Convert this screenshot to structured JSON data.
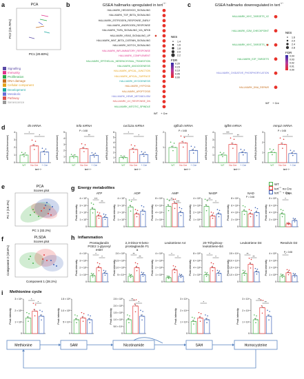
{
  "panels": {
    "a": "a",
    "b": "b",
    "c": "c",
    "d": "d",
    "e": "e",
    "f": "f",
    "g": "g",
    "h": "h",
    "i": "i"
  },
  "pca_a": {
    "title": "PCA",
    "xlabel": "PC1 (20.83%)",
    "ylabel": "PC2 (15.76%)"
  },
  "categories": [
    {
      "label": "Signalling",
      "color": "#5b4aa6"
    },
    {
      "label": "Immunity",
      "color": "#e0338c"
    },
    {
      "label": "Proliferation",
      "color": "#2aa84a"
    },
    {
      "label": "DNA damage",
      "color": "#c76f1e"
    },
    {
      "label": "Cellular component",
      "color": "#e6a21b"
    },
    {
      "label": "Development",
      "color": "#1aa6a0"
    },
    {
      "label": "Metabolic",
      "color": "#6a6fd6"
    },
    {
      "label": "Pathway",
      "color": "#d9534f"
    },
    {
      "label": "Senescence",
      "color": "#9a9a9a"
    }
  ],
  "gsea_up": {
    "title": "GSEA hallmarks upregulated in tert",
    "title_sup": "−/−",
    "x_labels": [
      "WT",
      "+ Cre"
    ],
    "items": [
      {
        "label": "HALLMARK_HEDGEHOG_SIGNALING",
        "color": "#222222",
        "wt": 0,
        "cre": 1
      },
      {
        "label": "HALLMARK_TGF_BETA_SIGNALING",
        "color": "#222222",
        "wt": 0,
        "cre": 1
      },
      {
        "label": "HALLMARK_ESTROGEN_RESPONSE_EARLY",
        "color": "#222222",
        "wt": 0,
        "cre": 1
      },
      {
        "label": "HALLMARK_ANDROGEN_RESPONSE",
        "color": "#222222",
        "wt": 0,
        "cre": 1
      },
      {
        "label": "HALLMARK_TNFA_SIGNALING_VIA_NFKB",
        "color": "#222222",
        "wt": 0,
        "cre": 1
      },
      {
        "label": "HALLMARK_KRAS_SIGNALING_UP",
        "color": "#222222",
        "wt": 1,
        "cre": 1
      },
      {
        "label": "HALLMARK_WNT_BETA_CATENIN_SIGNALING",
        "color": "#222222",
        "wt": 0,
        "cre": 1
      },
      {
        "label": "HALLMARK_NOTCH_SIGNALING",
        "color": "#222222",
        "wt": 0,
        "cre": 1
      },
      {
        "label": "HALLMARK_INFLAMMATORY_RESPONSE",
        "color": "#e0338c",
        "wt": 0,
        "cre": 1
      },
      {
        "label": "HALLMARK_COMPLEMENT",
        "color": "#e0338c",
        "wt": 0,
        "cre": 1
      },
      {
        "label": "HALLMARK_EPITHELIAL_MESENCHYMAL_TRANSITION",
        "color": "#2aa84a",
        "wt": 0,
        "cre": 1
      },
      {
        "label": "HALLMARK_ANGIOGENESIS",
        "color": "#2aa84a",
        "wt": 0,
        "cre": 1
      },
      {
        "label": "HALLMARK_APICAL_JUNCTION",
        "color": "#e6a21b",
        "wt": 0,
        "cre": 1
      },
      {
        "label": "HALLMARK_APICAL_SURFACE",
        "color": "#e6a21b",
        "wt": 0,
        "cre": 1
      },
      {
        "label": "HALLMARK_MYOGENESIS",
        "color": "#1aa6a0",
        "wt": 0,
        "cre": 1
      },
      {
        "label": "HALLMARK_HYPOXIA",
        "color": "#c76f1e",
        "wt": 0,
        "cre": 1
      },
      {
        "label": "HALLMARK_APOPTOSIS",
        "color": "#c76f1e",
        "wt": 0,
        "cre": 1
      },
      {
        "label": "HALLMARK_HEME_METABOLISM",
        "color": "#6a6fd6",
        "wt": 0,
        "cre": 1
      },
      {
        "label": "HALLMARK_UV_RESPONSE_DN",
        "color": "#d9534f",
        "wt": 0,
        "cre": 1
      },
      {
        "label": "HALLMARK_MITOTIC_SPINDLE",
        "color": "#2aa84a",
        "wt": 0,
        "cre": 1
      }
    ]
  },
  "gsea_down": {
    "title": "GSEA hallmarks downregulated in tert",
    "title_sup": "−/−",
    "x_labels": [
      "WT",
      "+ Cre"
    ],
    "items": [
      {
        "label": "HALLMARK_MYC_TARGETS_V2",
        "color": "#2aa84a",
        "wt": 0,
        "cre": 1
      },
      {
        "label": "HALLMARK_G2M_CHECKPOINT",
        "color": "#2aa84a",
        "wt": 0,
        "cre": 1
      },
      {
        "label": "HALLMARK_MYC_TARGETS_V1",
        "color": "#2aa84a",
        "wt": 1,
        "cre": 1
      },
      {
        "label": "HALLMARK_E2F_TARGETS",
        "color": "#2aa84a",
        "wt": 0,
        "cre": 1
      },
      {
        "label": "HALLMARK_OXIDATIVE_PHOSPHORYLATION",
        "color": "#6a6fd6",
        "wt": 0,
        "cre": 1
      },
      {
        "label": "HALLMARK_DNA_REPAIR",
        "color": "#c76f1e",
        "wt": 0,
        "cre": 1
      }
    ]
  },
  "legend_b": {
    "nes": "NES",
    "nes_vals": [
      "1.4",
      "1.6",
      "1.8",
      "2.0",
      "2.2"
    ],
    "fdr": "FDR",
    "fdr_vals": [
      "0.20",
      "0.15",
      "0.10",
      "0.05",
      "0.00"
    ]
  },
  "legend_c": {
    "nes": "NES",
    "nes_vals": [
      "1.6",
      "2.0",
      "2.4",
      "2.8"
    ],
    "fdr": "FDR",
    "fdr_vals": [
      "0.04",
      "0.03",
      "0.02",
      "0.01",
      "0.00"
    ]
  },
  "mrna_panels": [
    {
      "title": "il6 mRNA",
      "ylabel": "mRNA (fold increase)",
      "p": "",
      "wt": 1.0,
      "nocre": 2.2,
      "cre": 1.4,
      "ymax": 4,
      "stars": [
        "*",
        "*"
      ]
    },
    {
      "title": "tnfa mRNA",
      "ylabel": "mRNA (fold increase)",
      "p": "P = 0.08",
      "wt": 1.0,
      "nocre": 2.3,
      "cre": 1.2,
      "ymax": 5,
      "stars": [
        "",
        "**"
      ]
    },
    {
      "title": "cxcl12a mRNA",
      "ylabel": "mRNA (fold increase)",
      "p": "",
      "wt": 1.0,
      "nocre": 2.6,
      "cre": 1.6,
      "ymax": 6,
      "stars": [
        "*",
        "*"
      ]
    },
    {
      "title": "tgfb1b mRNA",
      "ylabel": "mRNA (fold increase)",
      "p": "P = 0.08",
      "wt": 1.0,
      "nocre": 1.3,
      "cre": 0.8,
      "ymax": 2,
      "stars": [
        "",
        "*"
      ]
    },
    {
      "title": "tgfb5 mRNA",
      "ylabel": "mRNA (fold increase)",
      "p": "",
      "wt": 1.0,
      "nocre": 2.4,
      "cre": 1.3,
      "ymax": 4,
      "stars": [
        "***",
        "**"
      ]
    },
    {
      "title": "mmp2 mRNA",
      "ylabel": "mRNA (fold increase)",
      "p": "P = 0.08",
      "wt": 1.0,
      "nocre": 1.8,
      "cre": 0.9,
      "ymax": 3,
      "stars": [
        "",
        "*"
      ]
    }
  ],
  "group_labels": {
    "wt": "WT",
    "nocre": "No Cre",
    "cre": "+ Cre",
    "tert": "tert",
    "tert_sup": "−/−"
  },
  "pca_e": {
    "title": "PCA",
    "subtitle": "Scores plot",
    "xlabel": "PC 1 (32.2%)",
    "ylabel": "PC 2 (19.3%)"
  },
  "plsda_f": {
    "title": "PLSDA",
    "subtitle": "Scores plot",
    "xlabel": "Component 1 (28.1%)",
    "ylabel": "Component 2 (18.6%)"
  },
  "energy": {
    "title": "Energy metabolites",
    "legend": [
      {
        "label": "WT",
        "color": "#49b34b"
      },
      {
        "label": "tert",
        "sup": "−/−",
        "tail": " no Cre",
        "color": "#e23a3a"
      },
      {
        "label": "tert",
        "sup": "−/−",
        "tail": " + Cre",
        "color": "#3e63b8"
      }
    ],
    "panels": [
      {
        "title": "ATP",
        "ylabel": "Peak intensity",
        "ticks": [
          "0",
          "1 × 10⁷",
          "2 × 10⁷",
          "3 × 10⁷",
          "4 × 10⁷"
        ],
        "wt": 0.62,
        "nocre": 0.38,
        "cre": 0.33,
        "stars": [
          "***",
          "**"
        ]
      },
      {
        "title": "ADP",
        "ylabel": "Peak intensity",
        "ticks": [
          "0",
          "1 × 10⁷",
          "2 × 10⁷",
          "3 × 10⁷",
          "4 × 10⁷"
        ],
        "wt": 0.7,
        "nocre": 0.45,
        "cre": 0.55,
        "stars": [
          "*",
          ""
        ]
      },
      {
        "title": "AMP",
        "ylabel": "Peak intensity",
        "ticks": [
          "0",
          "2 × 10⁶",
          "4 × 10⁶",
          "6 × 10⁶",
          "8 × 10⁶"
        ],
        "wt": 0.72,
        "nocre": 0.82,
        "cre": 0.5,
        "stars": [
          "**",
          "***"
        ]
      },
      {
        "title": "NADP",
        "ylabel": "Peak intensity",
        "ticks": [
          "0",
          "1 × 10⁵",
          "2 × 10⁵",
          "3 × 10⁵",
          "4 × 10⁵"
        ],
        "wt": 0.72,
        "nocre": 0.38,
        "cre": 0.45,
        "stars": [
          "**",
          "*"
        ],
        "p": ""
      },
      {
        "title": "NAD",
        "ylabel": "Peak intensity",
        "ticks": [
          "0",
          "2 × 10⁶",
          "4 × 10⁶",
          "6 × 10⁶",
          "8 × 10⁶"
        ],
        "wt": 0.55,
        "nocre": 0.45,
        "cre": 0.5,
        "stars": [
          "",
          ""
        ],
        "p": "P = 0.08"
      },
      {
        "title": "CoA",
        "ylabel": "Peak intensity",
        "ticks": [
          "0",
          "2 × 10⁵",
          "4 × 10⁵",
          "6 × 10⁵",
          "8 × 10⁵"
        ],
        "wt": 0.45,
        "nocre": 0.1,
        "cre": 0.22,
        "stars": [
          "*",
          ""
        ]
      }
    ]
  },
  "inflam": {
    "title": "Inflammation",
    "panels": [
      {
        "title": "Prostaglandin PGE2 1-glyceryl ester",
        "ylabel": "Peak intensity",
        "ticks": [
          "0",
          "1 × 10⁶",
          "2 × 10⁶",
          "3 × 10⁶",
          "4 × 10⁶"
        ],
        "wt": 0.22,
        "nocre": 0.5,
        "cre": 0.3,
        "stars": [
          "*",
          "*"
        ]
      },
      {
        "title": "2,3-Dinor-6-keto-prostaglandin F1 a",
        "ylabel": "Peak intensity",
        "ticks": [
          "0",
          "5 × 10⁴",
          "1.0 × 10⁵",
          "1.5 × 10⁵",
          "2.0 × 10⁵"
        ],
        "wt": 0.2,
        "nocre": 0.5,
        "cre": 0.25,
        "stars": [
          "**",
          "**"
        ]
      },
      {
        "title": "Leukotriene A4",
        "ylabel": "Peak intensity",
        "ticks": [
          "0",
          "1 × 10⁵",
          "2 × 10⁵",
          "3 × 10⁵",
          "4 × 10⁵"
        ],
        "wt": 0.15,
        "nocre": 0.42,
        "cre": 0.2,
        "stars": [
          "*",
          "*"
        ]
      },
      {
        "title": "20-Trihydroxy-leukotriene-B4",
        "ylabel": "Peak intensity",
        "ticks": [
          "0",
          "2 × 10⁵",
          "4 × 10⁵",
          "6 × 10⁵",
          "8 × 10⁵"
        ],
        "wt": 0.25,
        "nocre": 0.5,
        "cre": 0.3,
        "stars": [
          "*",
          "*"
        ]
      },
      {
        "title": "Leukotriene D4",
        "ylabel": "Peak intensity",
        "ticks": [
          "0",
          "1.0 × 10⁴",
          "1.5 × 10⁴",
          "2.0 × 10⁴",
          "2.5 × 10⁴"
        ],
        "wt": 0.3,
        "nocre": 0.62,
        "cre": 0.35,
        "stars": [
          "**",
          "**"
        ]
      },
      {
        "title": "Resolvin D2",
        "ylabel": "Peak intensity",
        "ticks": [
          "0",
          "1 × 10⁵",
          "2 × 10⁵",
          "3 × 10⁵",
          "4 × 10⁵"
        ],
        "wt": 0.2,
        "nocre": 0.32,
        "cre": 0.22,
        "stars": [
          "*",
          ""
        ],
        "p": "P = 0.08"
      }
    ]
  },
  "methionine": {
    "title": "Methionine cycle",
    "panels": [
      {
        "ylabel": "Peak intensity",
        "ticks": [
          "0",
          "1 × 10⁶",
          "2 × 10⁶",
          "3 × 10⁶"
        ],
        "wt": 0.45,
        "nocre": 0.65,
        "cre": 0.5,
        "stars": [
          "*",
          "*"
        ]
      },
      {
        "ylabel": "Peak intensity",
        "ticks": [
          "0",
          "5 × 10⁴",
          "1.0 × 10⁵",
          "1.5 × 10⁵"
        ],
        "wt": 0.4,
        "nocre": 0.45,
        "cre": 0.4,
        "stars": [
          "",
          ""
        ]
      },
      {
        "ylabel": "Peak intensity",
        "ticks": [
          "0",
          "5.0 × 10⁴",
          "1.0 × 10⁵",
          "1.5 × 10⁵",
          "2.0 × 10⁵",
          "2.5 × 10⁵"
        ],
        "wt": 0.4,
        "nocre": 0.8,
        "cre": 0.5,
        "stars": [
          "**",
          "*"
        ]
      },
      {
        "ylabel": "Peak intensity",
        "ticks": [
          "0",
          "1 × 10⁴",
          "2 × 10⁴",
          "3 × 10⁴"
        ],
        "wt": 0.35,
        "nocre": 0.45,
        "cre": 0.4,
        "stars": [
          "",
          "*"
        ]
      },
      {
        "ylabel": "Peak intensity",
        "ticks": [
          "0",
          "1 × 10⁴",
          "2 × 10⁴",
          "3 × 10⁴"
        ],
        "wt": 0.4,
        "nocre": 0.75,
        "cre": 0.5,
        "stars": [
          "**",
          "**"
        ]
      }
    ],
    "boxes": [
      "Methionine",
      "SAM",
      "Nicotinamide",
      "SAH",
      "Homocysteine"
    ]
  },
  "colors": {
    "wt": "#49b34b",
    "nocre": "#e23a3a",
    "cre": "#3e63b8"
  }
}
